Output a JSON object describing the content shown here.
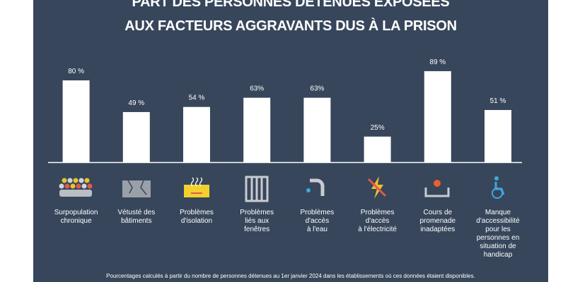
{
  "chart_data": {
    "type": "bar",
    "title": [
      "PART DES PERSONNES DÉTENUES EXPOSÉES",
      "AUX FACTEURS AGGRAVANTS DUS À LA PRISON"
    ],
    "categories": [
      "Surpopulation\nchronique",
      "Vétusté des\nbâtiments",
      "Problèmes\nd'isolation",
      "Problèmes\nliés aux\nfenêtres",
      "Problèmes\nd'accès\nà l'eau",
      "Problèmes\nd'accès\nà l'électricité",
      "Cours de\npromenade\ninadaptées",
      "Manque\nd'accessibilité\npour les\npersonnes en\nsituation de\nhandicap"
    ],
    "values": [
      80,
      49,
      54,
      63,
      63,
      25,
      89,
      51
    ],
    "value_labels": [
      "80 %",
      "49 %",
      "54 %",
      "63%",
      "63%",
      "25%",
      "89 %",
      "51 %"
    ],
    "color": "#ffffff",
    "ylim": [
      0,
      100
    ],
    "note": "Pourcentages calculés à partir du nombre de personnes détenues au 1er janvier 2024 dans les établissements où ces données étaient disponibles."
  }
}
